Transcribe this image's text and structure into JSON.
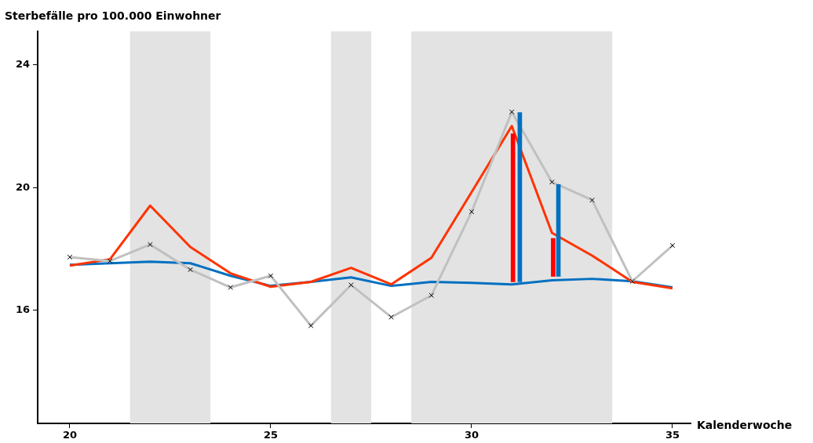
{
  "chart_data": {
    "type": "line",
    "ylabel": "Sterbefälle pro 100.000 Einwohner",
    "xlabel": "Kalenderwoche",
    "x": [
      20,
      21,
      22,
      23,
      24,
      25,
      26,
      27,
      28,
      29,
      30,
      31,
      32,
      33,
      34,
      35
    ],
    "xlim": [
      19.2,
      35.45
    ],
    "xticks": [
      20,
      25,
      30,
      35
    ],
    "ylim": [
      12.3,
      25.1
    ],
    "yticks": [
      16,
      20,
      24
    ],
    "grid": false,
    "legend": false,
    "bands": [
      {
        "axis": "x",
        "from": 21.5,
        "to": 23.5,
        "color": "#e3e3e3"
      },
      {
        "axis": "x",
        "from": 26.5,
        "to": 27.5,
        "color": "#e3e3e3"
      },
      {
        "axis": "x",
        "from": 28.5,
        "to": 33.5,
        "color": "#e3e3e3"
      }
    ],
    "series": [
      {
        "color": "#c0c0c0",
        "marker": "cross",
        "values": [
          17.73,
          17.6,
          18.14,
          17.32,
          16.74,
          17.12,
          15.49,
          16.82,
          15.77,
          16.48,
          19.21,
          22.47,
          20.18,
          19.59,
          16.94,
          18.11
        ]
      },
      {
        "color": "#ff3300",
        "values": [
          17.45,
          17.66,
          19.41,
          18.06,
          17.2,
          16.76,
          16.92,
          17.38,
          16.84,
          17.71,
          19.85,
          22.01,
          18.52,
          17.78,
          16.92,
          16.71
        ]
      },
      {
        "color": "#0070c0",
        "values": [
          17.48,
          17.53,
          17.58,
          17.53,
          17.12,
          16.79,
          16.92,
          17.07,
          16.79,
          16.92,
          16.89,
          16.84,
          16.97,
          17.02,
          16.94,
          16.74
        ]
      },
      {
        "type": "bar",
        "color": "#ff0000",
        "x": [
          31.03,
          32.03
        ],
        "base": [
          16.92,
          17.1
        ],
        "values": [
          4.84,
          1.24
        ]
      },
      {
        "type": "bar",
        "color": "#0070c0",
        "x": [
          31.2,
          32.16
        ],
        "base": [
          16.92,
          17.1
        ],
        "values": [
          5.53,
          3.0
        ]
      }
    ]
  }
}
